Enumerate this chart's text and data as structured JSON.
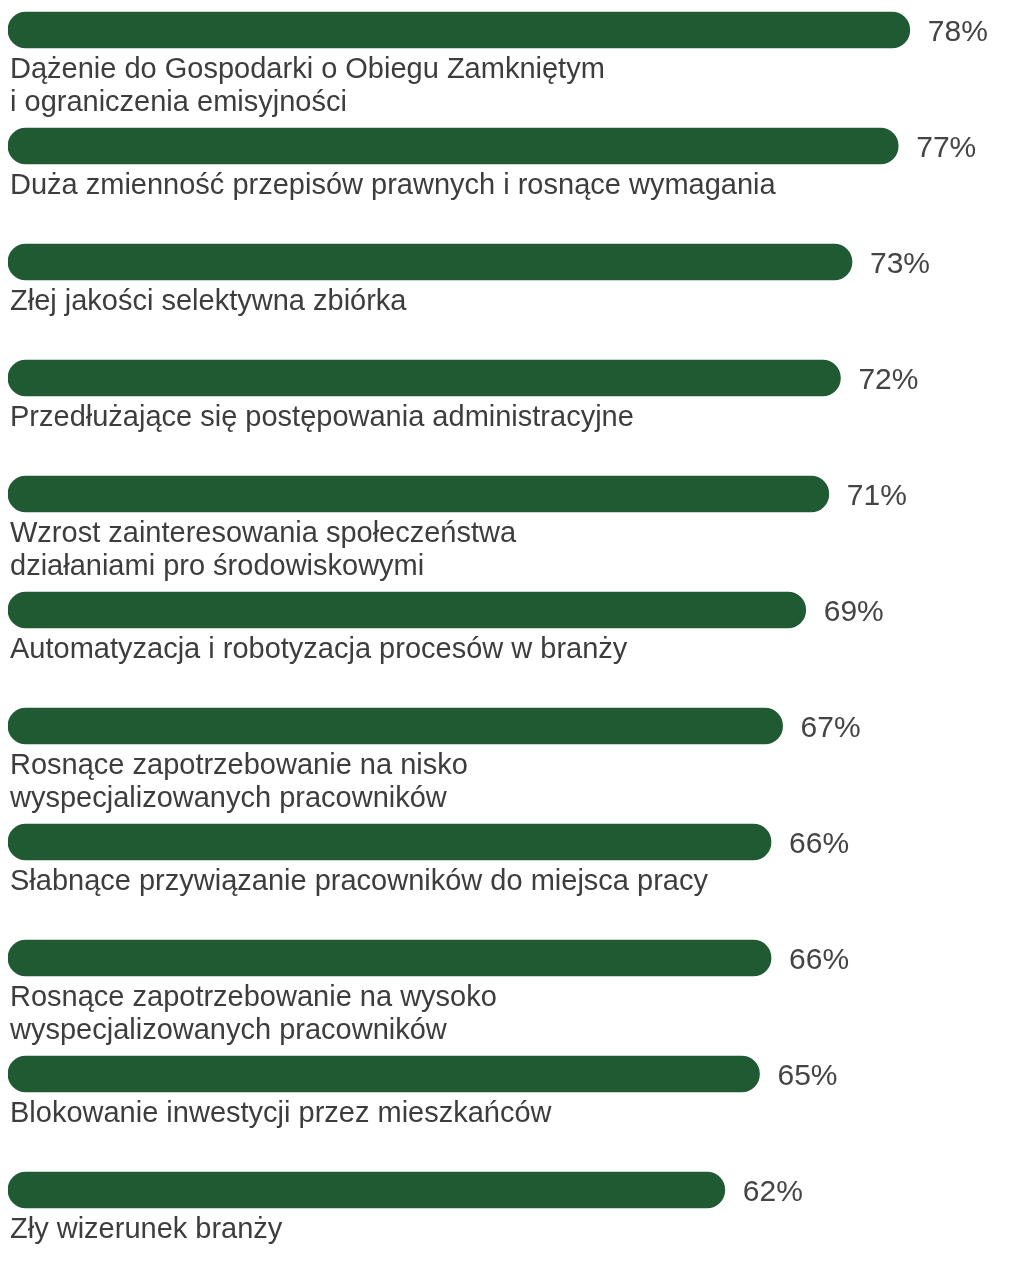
{
  "chart_data": {
    "type": "bar",
    "orientation": "horizontal",
    "color": "#1f5a32",
    "categories": [
      "Dążenie do Gospodarki o Obiegu Zamkniętym\ni ograniczenia emisyjności",
      "Duża zmienność przepisów prawnych i rosnące wymagania",
      "Złej jakości selektywna zbiórka",
      "Przedłużające się postępowania administracyjne",
      "Wzrost zainteresowania społeczeństwa\ndziałaniami pro środowiskowymi",
      "Automatyzacja i robotyzacja procesów w branży",
      "Rosnące zapotrzebowanie na nisko\nwyspecjalizowanych pracowników",
      "Słabnące przywiązanie pracowników do miejsca pracy",
      "Rosnące zapotrzebowanie na wysoko\nwyspecjalizowanych pracowników",
      "Blokowanie inwestycji przez mieszkańców",
      "Zły wizerunek branży"
    ],
    "values": [
      78,
      77,
      73,
      72,
      71,
      69,
      67,
      66,
      66,
      65,
      62
    ],
    "value_labels": [
      "78%",
      "77%",
      "73%",
      "72%",
      "71%",
      "69%",
      "67%",
      "66%",
      "66%",
      "65%",
      "62%"
    ],
    "legend": false
  }
}
